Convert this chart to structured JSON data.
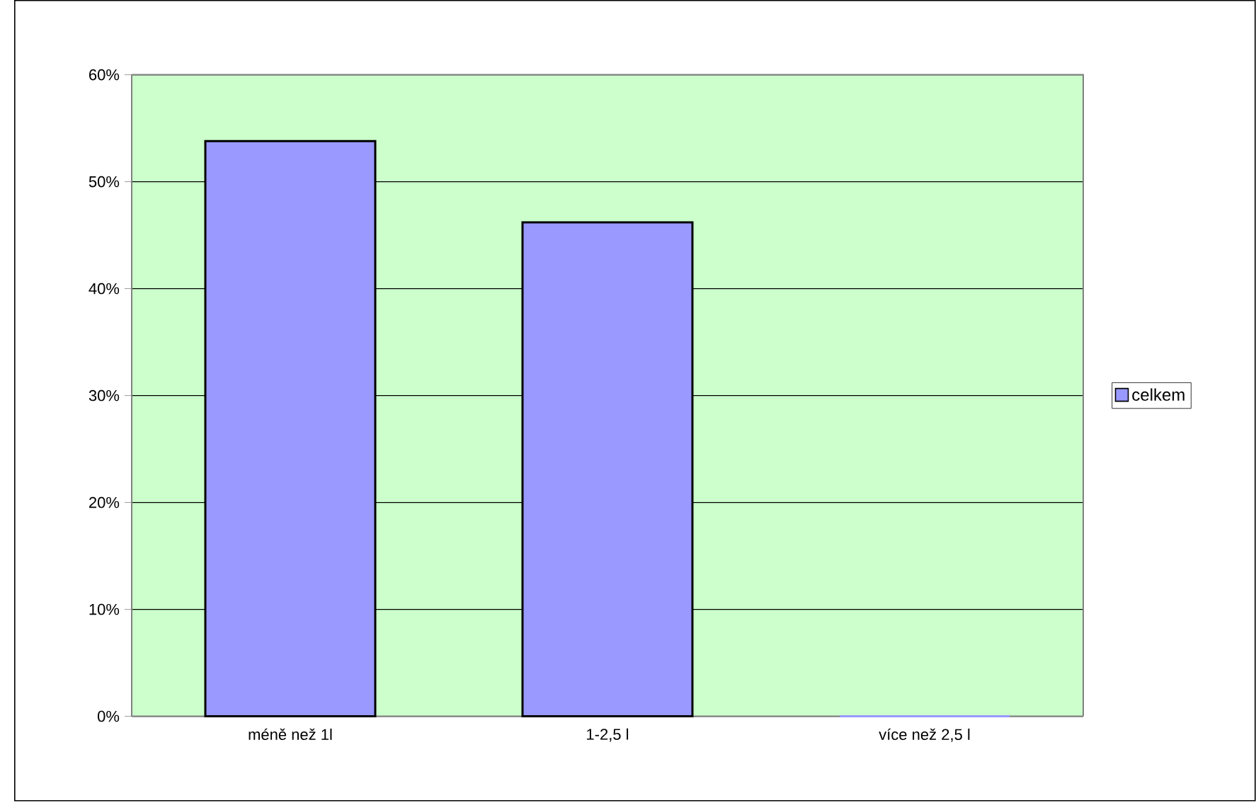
{
  "chart_data": {
    "type": "bar",
    "categories": [
      "méně než 1l",
      "1-2,5 l",
      "více než 2,5 l"
    ],
    "series": [
      {
        "name": "celkem",
        "color": "#9999ff",
        "values": [
          53.8,
          46.2,
          0
        ]
      }
    ],
    "ylim": [
      0,
      60
    ],
    "yticks": [
      {
        "value": 0,
        "label": "0%"
      },
      {
        "value": 10,
        "label": "10%"
      },
      {
        "value": 20,
        "label": "20%"
      },
      {
        "value": 30,
        "label": "30%"
      },
      {
        "value": 40,
        "label": "40%"
      },
      {
        "value": 50,
        "label": "50%"
      },
      {
        "value": 60,
        "label": "60%"
      }
    ],
    "grid": "y",
    "legend": "right"
  }
}
